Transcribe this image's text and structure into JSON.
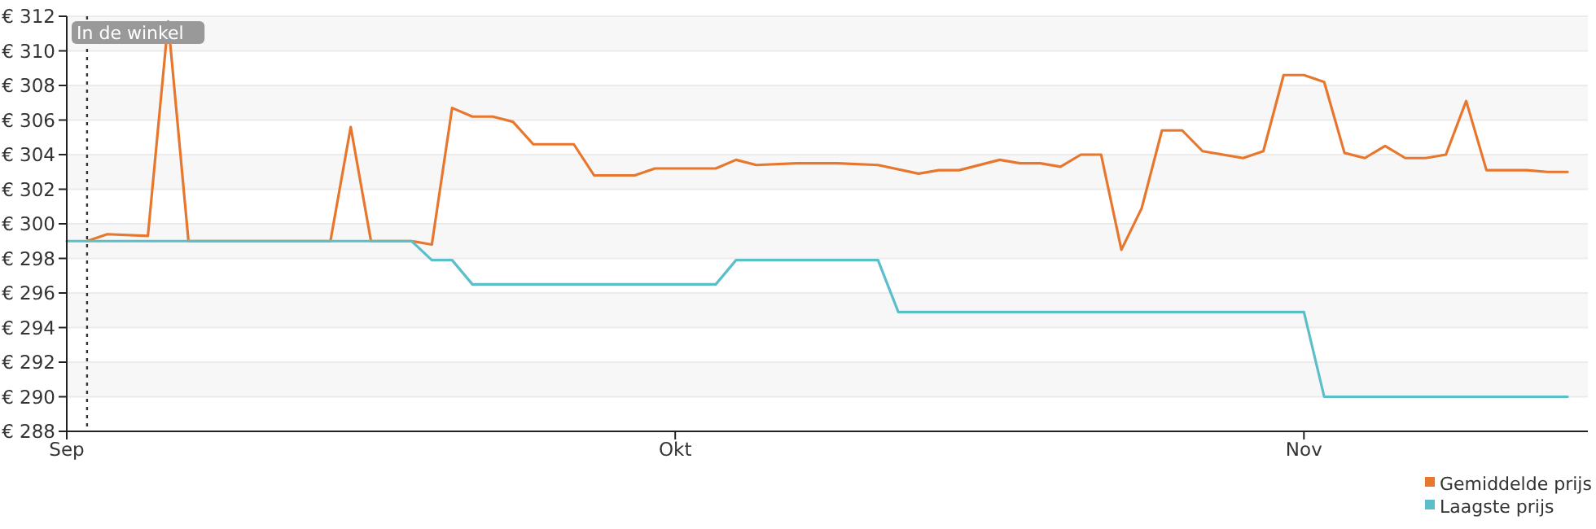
{
  "chart_data": {
    "type": "line",
    "xlim": [
      "--09-01",
      "--11-15"
    ],
    "xticks": [
      {
        "value": "--09-01",
        "label": "Sep"
      },
      {
        "value": "--10-01",
        "label": "Okt"
      },
      {
        "value": "--11-01",
        "label": "Nov"
      }
    ],
    "ylim": [
      288,
      312
    ],
    "yticks": [
      {
        "value": 288,
        "label": "€ 288"
      },
      {
        "value": 290,
        "label": "€ 290"
      },
      {
        "value": 292,
        "label": "€ 292"
      },
      {
        "value": 294,
        "label": "€ 294"
      },
      {
        "value": 296,
        "label": "€ 296"
      },
      {
        "value": 298,
        "label": "€ 298"
      },
      {
        "value": 300,
        "label": "€ 300"
      },
      {
        "value": 302,
        "label": "€ 302"
      },
      {
        "value": 304,
        "label": "€ 304"
      },
      {
        "value": 306,
        "label": "€ 306"
      },
      {
        "value": 308,
        "label": "€ 308"
      },
      {
        "value": 310,
        "label": "€ 310"
      },
      {
        "value": 312,
        "label": "€ 312"
      }
    ],
    "grid": "y",
    "legend": "bottom right",
    "marker": "none",
    "line_style": "solid",
    "ref_lines": [
      {
        "axis": "x",
        "value": "--09-02",
        "label": "In de winkel",
        "line_style": "dotted",
        "color": "#333333"
      }
    ],
    "series": [
      {
        "name": "Gemiddelde prijs",
        "color": "#e8772e",
        "x": [
          "--09-02",
          "--09-03",
          "--09-05",
          "--09-06",
          "--09-07",
          "--09-14",
          "--09-15",
          "--09-16",
          "--09-18",
          "--09-19",
          "--09-20",
          "--09-21",
          "--09-22",
          "--09-23",
          "--09-24",
          "--09-26",
          "--09-27",
          "--09-29",
          "--09-30",
          "--10-03",
          "--10-04",
          "--10-05",
          "--10-07",
          "--10-09",
          "--10-11",
          "--10-13",
          "--10-14",
          "--10-15",
          "--10-17",
          "--10-18",
          "--10-19",
          "--10-20",
          "--10-21",
          "--10-22",
          "--10-23",
          "--10-24",
          "--10-25",
          "--10-26",
          "--10-27",
          "--10-29",
          "--10-30",
          "--10-31",
          "--11-01",
          "--11-02",
          "--11-03",
          "--11-04",
          "--11-05",
          "--11-06",
          "--11-07",
          "--11-08",
          "--11-09",
          "--11-10",
          "--11-12",
          "--11-13",
          "--11-14"
        ],
        "values": [
          299.0,
          299.4,
          299.3,
          311.7,
          299.0,
          299.0,
          305.6,
          299.0,
          299.0,
          298.8,
          306.7,
          306.2,
          306.2,
          305.9,
          304.6,
          304.6,
          302.8,
          302.8,
          303.2,
          303.2,
          303.7,
          303.4,
          303.5,
          303.5,
          303.4,
          302.9,
          303.1,
          303.1,
          303.7,
          303.5,
          303.5,
          303.3,
          304.0,
          304.0,
          298.5,
          300.9,
          305.4,
          305.4,
          304.2,
          303.8,
          304.2,
          308.6,
          308.6,
          308.2,
          304.1,
          303.8,
          304.5,
          303.8,
          303.8,
          304.0,
          307.1,
          303.1,
          303.1,
          303.0,
          303.0
        ]
      },
      {
        "name": "Laagste prijs",
        "color": "#5bbfc9",
        "x": [
          "--09-01",
          "--09-18",
          "--09-19",
          "--09-20",
          "--09-21",
          "--10-03",
          "--10-04",
          "--10-11",
          "--10-12",
          "--11-01",
          "--11-02",
          "--11-14"
        ],
        "values": [
          299.0,
          299.0,
          297.9,
          297.9,
          296.5,
          296.5,
          297.9,
          297.9,
          294.9,
          294.9,
          290.0,
          290.0
        ]
      }
    ]
  }
}
